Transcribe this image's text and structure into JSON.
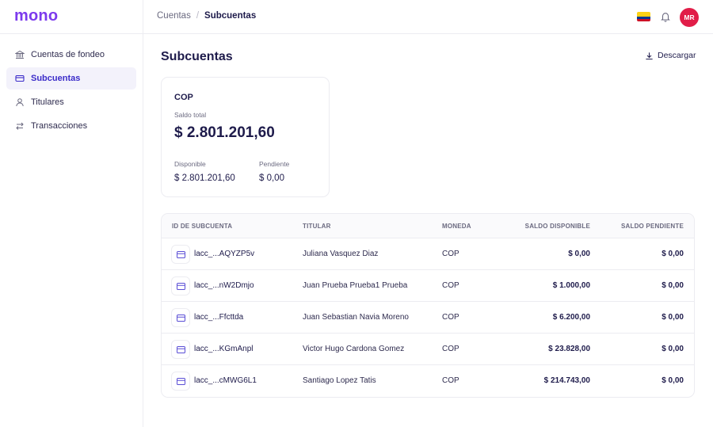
{
  "brand": {
    "logo": "mono",
    "color": "#7c3aed"
  },
  "sidebar": {
    "items": [
      {
        "label": "Cuentas de fondeo",
        "icon": "bank-icon",
        "active": false
      },
      {
        "label": "Subcuentas",
        "icon": "card-icon",
        "active": true
      },
      {
        "label": "Titulares",
        "icon": "user-icon",
        "active": false
      },
      {
        "label": "Transacciones",
        "icon": "arrows-swap-icon",
        "active": false
      }
    ]
  },
  "header": {
    "breadcrumb": {
      "parent": "Cuentas",
      "separator": "/",
      "current": "Subcuentas"
    },
    "flag": "colombia-flag-icon",
    "avatar_initials": "MR",
    "avatar_color": "#e11d48"
  },
  "page": {
    "title": "Subcuentas",
    "download_label": "Descargar"
  },
  "balance": {
    "currency": "COP",
    "total_label": "Saldo total",
    "total": "$ 2.801.201,60",
    "available_label": "Disponible",
    "available": "$ 2.801.201,60",
    "pending_label": "Pendiente",
    "pending": "$ 0,00"
  },
  "table": {
    "columns": {
      "id": "ID DE SUBCUENTA",
      "holder": "TITULAR",
      "currency": "MONEDA",
      "available": "SALDO DISPONIBLE",
      "pending": "SALDO PENDIENTE"
    },
    "rows": [
      {
        "id": "lacc_...AQYZP5v",
        "holder": "Juliana Vasquez Diaz",
        "currency": "COP",
        "available": "$ 0,00",
        "pending": "$ 0,00"
      },
      {
        "id": "lacc_...nW2Dmjo",
        "holder": "Juan Prueba Prueba1 Prueba",
        "currency": "COP",
        "available": "$ 1.000,00",
        "pending": "$ 0,00"
      },
      {
        "id": "lacc_...Ffcttda",
        "holder": "Juan Sebastian Navia Moreno",
        "currency": "COP",
        "available": "$ 6.200,00",
        "pending": "$ 0,00"
      },
      {
        "id": "lacc_...KGmAnpl",
        "holder": "Victor Hugo Cardona Gomez",
        "currency": "COP",
        "available": "$ 23.828,00",
        "pending": "$ 0,00"
      },
      {
        "id": "lacc_...cMWG6L1",
        "holder": "Santiago Lopez Tatis",
        "currency": "COP",
        "available": "$ 214.743,00",
        "pending": "$ 0,00"
      }
    ]
  }
}
